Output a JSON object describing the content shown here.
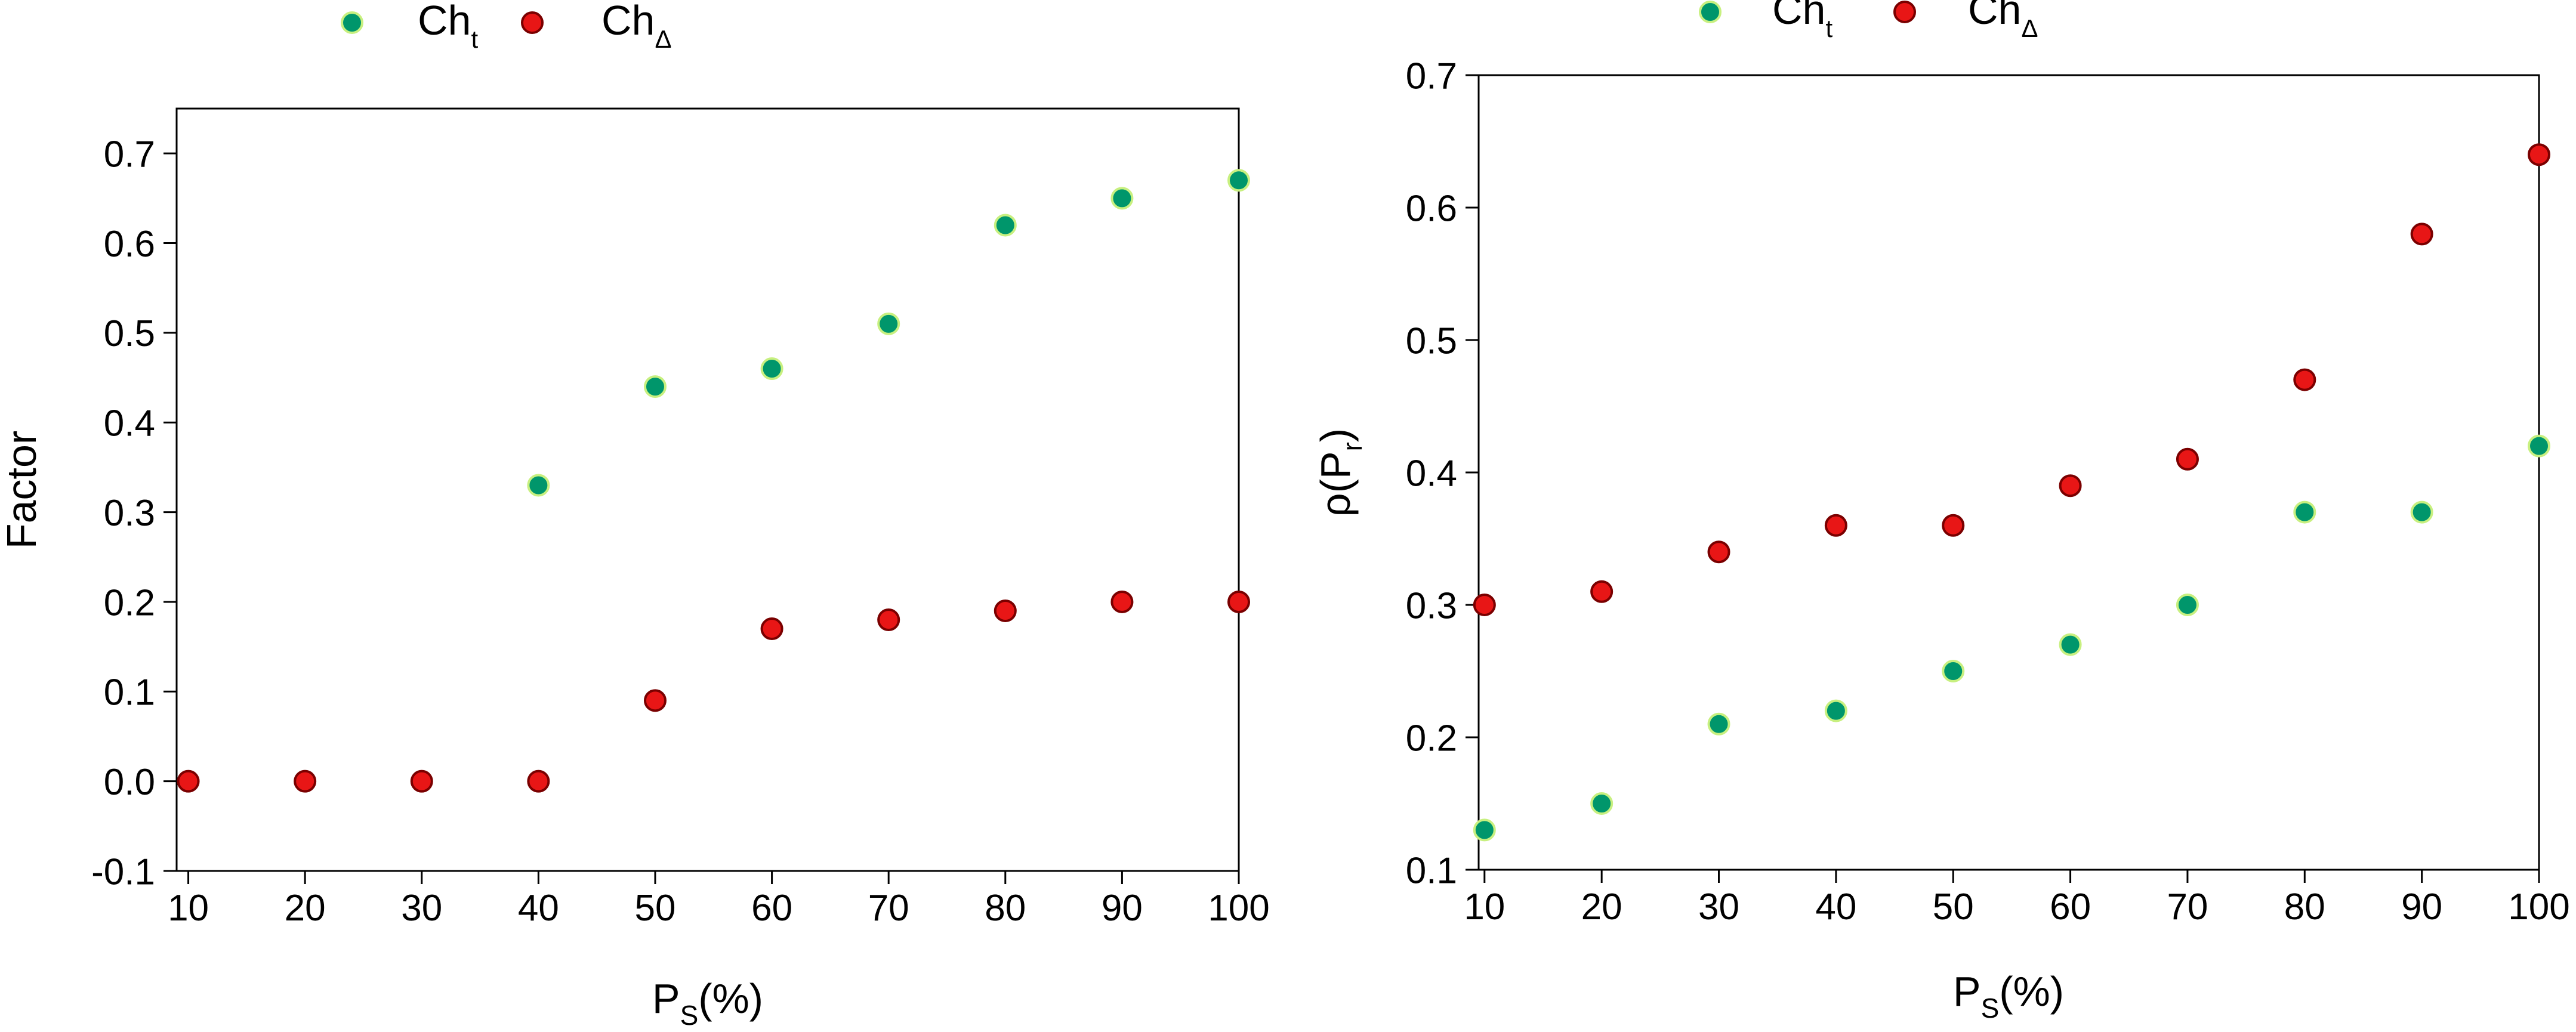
{
  "colors": {
    "cht_fill": "#00966b",
    "cht_ring": "#c8f080",
    "chdelta_fill": "#e81616",
    "chdelta_ring": "#7a0000",
    "axis": "#000000"
  },
  "chart_data": [
    {
      "type": "scatter",
      "title": "",
      "xlabel": {
        "main": "P",
        "sub": "S",
        "tail": "(%)"
      },
      "ylabel": "Factor",
      "xlim": [
        9,
        100
      ],
      "ylim": [
        -0.1,
        0.75
      ],
      "xticks": [
        "10",
        "20",
        "30",
        "40",
        "50",
        "60",
        "70",
        "80",
        "90",
        "100"
      ],
      "yticks": [
        "-0.1",
        "0.0",
        "0.1",
        "0.2",
        "0.3",
        "0.4",
        "0.5",
        "0.6",
        "0.7"
      ],
      "legend": {
        "placement": "top-center-outside"
      },
      "series": [
        {
          "name": "Ch",
          "name_sub": "t",
          "key": "cht",
          "x": [
            40,
            50,
            60,
            70,
            80,
            90,
            100
          ],
          "y": [
            0.33,
            0.44,
            0.46,
            0.51,
            0.62,
            0.65,
            0.67
          ]
        },
        {
          "name": "Ch",
          "name_sub": "Δ",
          "key": "chdelta",
          "x": [
            10,
            20,
            30,
            40,
            50,
            60,
            70,
            80,
            90,
            100
          ],
          "y": [
            0.0,
            0.0,
            0.0,
            0.0,
            0.09,
            0.17,
            0.18,
            0.19,
            0.2,
            0.2
          ]
        }
      ]
    },
    {
      "type": "scatter",
      "title": "",
      "xlabel": {
        "main": "P",
        "sub": "S",
        "tail": "(%)"
      },
      "ylabel": {
        "main": "ρ(P",
        "sub": "r",
        "tail": ")"
      },
      "xlim": [
        9.5,
        100
      ],
      "ylim": [
        0.1,
        0.7
      ],
      "xticks": [
        "10",
        "20",
        "30",
        "40",
        "50",
        "60",
        "70",
        "80",
        "90",
        "100"
      ],
      "yticks": [
        "0.1",
        "0.2",
        "0.3",
        "0.4",
        "0.5",
        "0.6",
        "0.7"
      ],
      "legend": {
        "placement": "top-center-outside"
      },
      "series": [
        {
          "name": "Ch",
          "name_sub": "t",
          "key": "cht",
          "x": [
            10,
            20,
            30,
            40,
            50,
            60,
            70,
            80,
            90,
            100
          ],
          "y": [
            0.13,
            0.15,
            0.21,
            0.22,
            0.25,
            0.27,
            0.3,
            0.37,
            0.37,
            0.42
          ]
        },
        {
          "name": "Ch",
          "name_sub": "Δ",
          "key": "chdelta",
          "x": [
            10,
            20,
            30,
            40,
            50,
            60,
            70,
            80,
            90,
            100
          ],
          "y": [
            0.3,
            0.31,
            0.34,
            0.36,
            0.36,
            0.39,
            0.41,
            0.47,
            0.58,
            0.64
          ]
        }
      ]
    }
  ]
}
